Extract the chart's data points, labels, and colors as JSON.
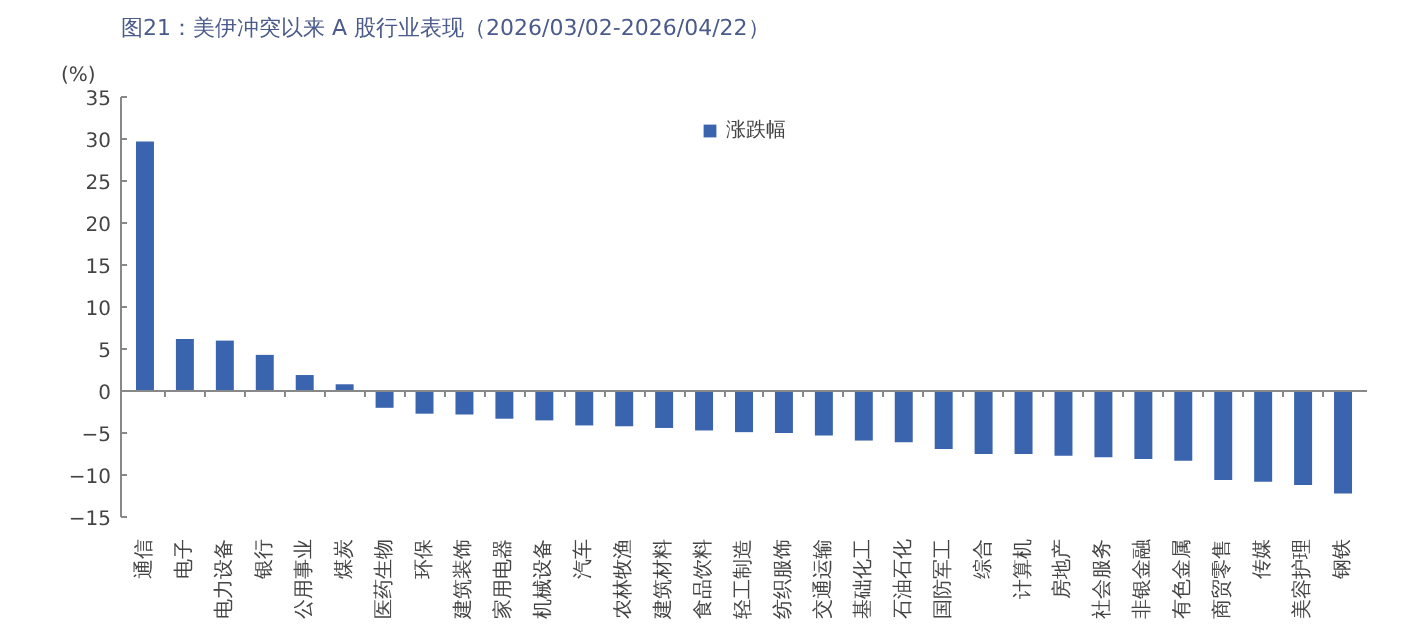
{
  "chart_data": {
    "type": "bar",
    "title": "图21：美伊冲突以来 A 股行业表现（2026/03/02-2026/04/22）",
    "ylabel": "(%)",
    "categories": [
      "通信",
      "电子",
      "电力设备",
      "银行",
      "公用事业",
      "煤炭",
      "医药生物",
      "环保",
      "建筑装饰",
      "家用电器",
      "机械设备",
      "汽车",
      "农林牧渔",
      "建筑材料",
      "食品饮料",
      "轻工制造",
      "纺织服饰",
      "交通运输",
      "基础化工",
      "石油石化",
      "国防军工",
      "综合",
      "计算机",
      "房地产",
      "社会服务",
      "非银金融",
      "有色金属",
      "商贸零售",
      "传媒",
      "美容护理",
      "钢铁"
    ],
    "series": [
      {
        "name": "涨跌幅",
        "color": "#3a64ad",
        "values": [
          29.7,
          6.2,
          6.0,
          4.3,
          1.9,
          0.8,
          -2.0,
          -2.7,
          -2.8,
          -3.3,
          -3.5,
          -4.1,
          -4.2,
          -4.4,
          -4.7,
          -4.9,
          -5.0,
          -5.3,
          -5.9,
          -6.1,
          -6.9,
          -7.5,
          -7.5,
          -7.7,
          -7.9,
          -8.1,
          -8.3,
          -10.6,
          -10.8,
          -11.2,
          -12.2
        ]
      }
    ],
    "ylim": [
      -15,
      35
    ],
    "yticks": [
      -15,
      -10,
      -5,
      0,
      5,
      10,
      15,
      20,
      25,
      30,
      35
    ],
    "legend": "top"
  }
}
